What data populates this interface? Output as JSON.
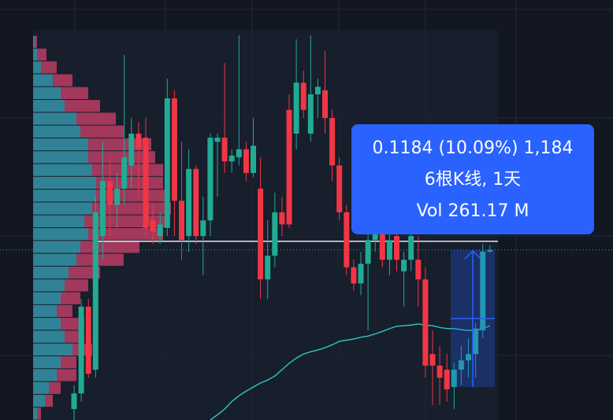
{
  "chart_data": {
    "type": "candlestick",
    "up_color": "#22ab94",
    "down_color": "#f23645",
    "ma_color": "#2fbdbd",
    "ylim": [
      0.999,
      1.725
    ],
    "open": [
      1.018,
      1.045,
      1.195,
      1.086,
      1.317,
      1.412,
      1.371,
      1.399,
      1.439,
      1.494,
      1.487,
      1.344,
      1.317,
      1.331,
      1.555,
      1.378,
      1.317,
      1.433,
      1.317,
      1.344,
      1.48,
      1.487,
      1.446,
      1.453,
      1.467,
      1.426,
      1.399,
      1.242,
      1.283,
      1.358,
      1.535,
      1.494,
      1.582,
      1.494,
      1.562,
      1.569,
      1.521,
      1.439,
      1.358,
      1.263,
      1.235,
      1.269,
      1.31,
      1.324,
      1.276,
      1.317,
      1.256,
      1.276,
      1.276,
      1.242,
      1.113,
      1.093,
      1.086,
      1.056,
      1.086,
      1.102,
      1.113,
      1.154,
      1.29
    ],
    "high": [
      1.059,
      1.208,
      1.208,
      1.385,
      1.48,
      1.453,
      1.426,
      1.63,
      1.521,
      1.514,
      1.521,
      1.371,
      1.358,
      1.589,
      1.569,
      1.48,
      1.467,
      1.439,
      1.385,
      1.494,
      1.494,
      1.616,
      1.467,
      1.664,
      1.48,
      1.521,
      1.453,
      1.344,
      1.392,
      1.385,
      1.562,
      1.657,
      1.603,
      1.664,
      1.589,
      1.637,
      1.535,
      1.453,
      1.371,
      1.276,
      1.29,
      1.331,
      1.344,
      1.331,
      1.331,
      1.324,
      1.29,
      1.331,
      1.317,
      1.263,
      1.154,
      1.127,
      1.113,
      1.099,
      1.127,
      1.14,
      1.167,
      1.303,
      1.301
    ],
    "low": [
      0.999,
      1.031,
      1.072,
      1.072,
      1.276,
      1.317,
      1.331,
      1.371,
      1.399,
      1.385,
      1.317,
      1.303,
      1.303,
      1.317,
      1.317,
      1.276,
      1.29,
      1.303,
      1.249,
      1.317,
      1.385,
      1.426,
      1.426,
      1.439,
      1.412,
      1.419,
      1.208,
      1.208,
      1.263,
      1.317,
      1.331,
      1.467,
      1.521,
      1.48,
      1.521,
      1.494,
      1.412,
      1.344,
      1.249,
      1.222,
      1.215,
      1.154,
      1.29,
      1.263,
      1.249,
      1.256,
      1.195,
      1.256,
      1.195,
      1.072,
      1.025,
      1.025,
      1.031,
      1.018,
      1.059,
      1.072,
      1.072,
      1.14,
      1.287
    ],
    "close": [
      1.045,
      1.195,
      1.079,
      1.358,
      1.412,
      1.371,
      1.399,
      1.453,
      1.494,
      1.467,
      1.331,
      1.324,
      1.337,
      1.555,
      1.378,
      1.31,
      1.433,
      1.317,
      1.344,
      1.487,
      1.487,
      1.446,
      1.456,
      1.467,
      1.426,
      1.473,
      1.242,
      1.283,
      1.358,
      1.337,
      1.337,
      1.582,
      1.535,
      1.562,
      1.575,
      1.521,
      1.439,
      1.358,
      1.263,
      1.235,
      1.269,
      1.31,
      1.324,
      1.276,
      1.31,
      1.276,
      1.276,
      1.317,
      1.242,
      1.093,
      1.093,
      1.072,
      1.052,
      1.086,
      1.102,
      1.113,
      1.157,
      1.29,
      1.293
    ],
    "ma": [
      null,
      null,
      null,
      null,
      null,
      null,
      null,
      null,
      null,
      null,
      null,
      null,
      null,
      null,
      null,
      null,
      null,
      null,
      null,
      0.999,
      1.008,
      1.018,
      1.031,
      1.041,
      1.049,
      1.056,
      1.063,
      1.068,
      1.075,
      1.086,
      1.097,
      1.106,
      1.113,
      1.117,
      1.12,
      1.124,
      1.129,
      1.135,
      1.137,
      1.139,
      1.142,
      1.144,
      1.148,
      1.152,
      1.157,
      1.161,
      1.162,
      1.163,
      1.165,
      1.163,
      1.162,
      1.159,
      1.157,
      1.157,
      1.155,
      1.154,
      1.154,
      1.157,
      1.162
    ],
    "poc": 1.308,
    "volume_profile": {
      "up_color": "#3aa6b9",
      "down_color": "#d1416b",
      "up": [
        2,
        5,
        10,
        25,
        35,
        40,
        55,
        60,
        70,
        70,
        75,
        80,
        80,
        75,
        65,
        70,
        60,
        55,
        45,
        40,
        35,
        30,
        35,
        40,
        50,
        35,
        30,
        20,
        15,
        5
      ],
      "down": [
        3,
        12,
        20,
        25,
        35,
        45,
        50,
        55,
        80,
        85,
        90,
        85,
        90,
        100,
        105,
        95,
        75,
        60,
        40,
        30,
        25,
        20,
        30,
        25,
        25,
        20,
        25,
        15,
        10,
        5
      ]
    },
    "tooltip": [
      "0.1184 (10.09%) 1,184",
      "6根K线, 1天",
      "Vol 261.17 M"
    ]
  }
}
